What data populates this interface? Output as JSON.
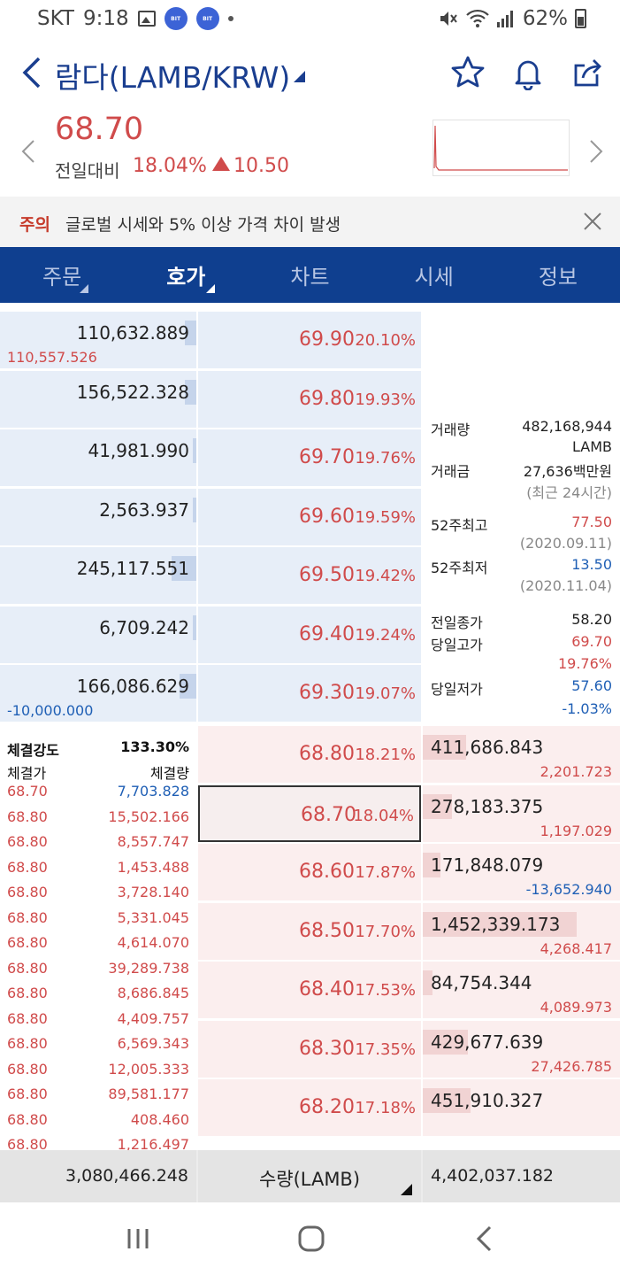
{
  "status_bar": {
    "carrier": "SKT",
    "time": "9:18",
    "battery": "62%",
    "bit1": "BIT",
    "bit2": "BIT"
  },
  "header": {
    "title": "람다(LAMB/KRW)"
  },
  "price": {
    "current": "68.70",
    "prev_label": "전일대비",
    "change_pct": "18.04%",
    "change_val": "10.50",
    "color_up": "#d04b4b"
  },
  "notice": {
    "tag": "주의",
    "text": "글로벌 시세와 5% 이상 가격 차이 발생"
  },
  "tabs": [
    {
      "label": "주문",
      "active": false,
      "dropdown": true
    },
    {
      "label": "호가",
      "active": true,
      "dropdown": true
    },
    {
      "label": "차트",
      "active": false,
      "dropdown": false
    },
    {
      "label": "시세",
      "active": false,
      "dropdown": false
    },
    {
      "label": "정보",
      "active": false,
      "dropdown": false
    }
  ],
  "asks": [
    {
      "qty": "110,632.889",
      "change": "110,557.526",
      "change_color": "red",
      "price": "69.90",
      "pct": "20.10%",
      "depth": 0.06
    },
    {
      "qty": "156,522.328",
      "change": "",
      "change_color": "",
      "price": "69.80",
      "pct": "19.93%",
      "depth": 0.06
    },
    {
      "qty": "41,981.990",
      "change": "",
      "change_color": "",
      "price": "69.70",
      "pct": "19.76%",
      "depth": 0.02
    },
    {
      "qty": "2,563.937",
      "change": "",
      "change_color": "",
      "price": "69.60",
      "pct": "19.59%",
      "depth": 0.0
    },
    {
      "qty": "245,117.551",
      "change": "",
      "change_color": "",
      "price": "69.50",
      "pct": "19.42%",
      "depth": 0.13
    },
    {
      "qty": "6,709.242",
      "change": "",
      "change_color": "",
      "price": "69.40",
      "pct": "19.24%",
      "depth": 0.0
    },
    {
      "qty": "166,086.629",
      "change": "-10,000.000",
      "change_color": "blue",
      "price": "69.30",
      "pct": "19.07%",
      "depth": 0.09
    }
  ],
  "bids": [
    {
      "qty": "411,686.843",
      "change": "2,201.723",
      "change_color": "red",
      "price": "68.80",
      "pct": "18.21%",
      "depth": 0.22,
      "current": false
    },
    {
      "qty": "278,183.375",
      "change": "1,197.029",
      "change_color": "red",
      "price": "68.70",
      "pct": "18.04%",
      "depth": 0.15,
      "current": true
    },
    {
      "qty": "171,848.079",
      "change": "-13,652.940",
      "change_color": "blue",
      "price": "68.60",
      "pct": "17.87%",
      "depth": 0.09,
      "current": false
    },
    {
      "qty": "1,452,339.173",
      "change": "4,268.417",
      "change_color": "red",
      "price": "68.50",
      "pct": "17.70%",
      "depth": 0.78,
      "current": false
    },
    {
      "qty": "84,754.344",
      "change": "4,089.973",
      "change_color": "red",
      "price": "68.40",
      "pct": "17.53%",
      "depth": 0.05,
      "current": false
    },
    {
      "qty": "429,677.639",
      "change": "27,426.785",
      "change_color": "red",
      "price": "68.30",
      "pct": "17.35%",
      "depth": 0.23,
      "current": false
    },
    {
      "qty": "451,910.327",
      "change": "",
      "change_color": "",
      "price": "68.20",
      "pct": "17.18%",
      "depth": 0.24,
      "current": false
    }
  ],
  "info": {
    "volume_label": "거래량",
    "volume": "482,168,944",
    "volume_unit": "LAMB",
    "amount_label": "거래금",
    "amount": "27,636백만원",
    "period": "(최근 24시간)",
    "high52_label": "52주최고",
    "high52": "77.50",
    "high52_date": "(2020.09.11)",
    "low52_label": "52주최저",
    "low52": "13.50",
    "low52_date": "(2020.11.04)",
    "prev_close_label": "전일종가",
    "prev_close": "58.20",
    "day_high_label": "당일고가",
    "day_high": "69.70",
    "day_high_pct": "19.76%",
    "day_low_label": "당일저가",
    "day_low": "57.60",
    "day_low_pct": "-1.03%"
  },
  "trades": {
    "strength_label": "체결강도",
    "strength": "133.30%",
    "price_header": "체결가",
    "qty_header": "체결량",
    "rows": [
      {
        "price": "68.70",
        "qty": "7,703.828",
        "side": "buy"
      },
      {
        "price": "68.80",
        "qty": "15,502.166",
        "side": "sell"
      },
      {
        "price": "68.80",
        "qty": "8,557.747",
        "side": "sell"
      },
      {
        "price": "68.80",
        "qty": "1,453.488",
        "side": "sell"
      },
      {
        "price": "68.80",
        "qty": "3,728.140",
        "side": "sell"
      },
      {
        "price": "68.80",
        "qty": "5,331.045",
        "side": "sell"
      },
      {
        "price": "68.80",
        "qty": "4,614.070",
        "side": "sell"
      },
      {
        "price": "68.80",
        "qty": "39,289.738",
        "side": "sell"
      },
      {
        "price": "68.80",
        "qty": "8,686.845",
        "side": "sell"
      },
      {
        "price": "68.80",
        "qty": "4,409.757",
        "side": "sell"
      },
      {
        "price": "68.80",
        "qty": "6,569.343",
        "side": "sell"
      },
      {
        "price": "68.80",
        "qty": "12,005.333",
        "side": "sell"
      },
      {
        "price": "68.80",
        "qty": "89,581.177",
        "side": "sell"
      },
      {
        "price": "68.80",
        "qty": "408.460",
        "side": "sell"
      },
      {
        "price": "68.80",
        "qty": "1,216.497",
        "side": "sell"
      }
    ]
  },
  "footer": {
    "total_ask": "3,080,466.248",
    "unit_label": "수량(LAMB)",
    "total_bid": "4,402,037.182"
  },
  "colors": {
    "red": "#d04b4b",
    "blue": "#1f5fb5",
    "navy": "#0f3f8f"
  }
}
